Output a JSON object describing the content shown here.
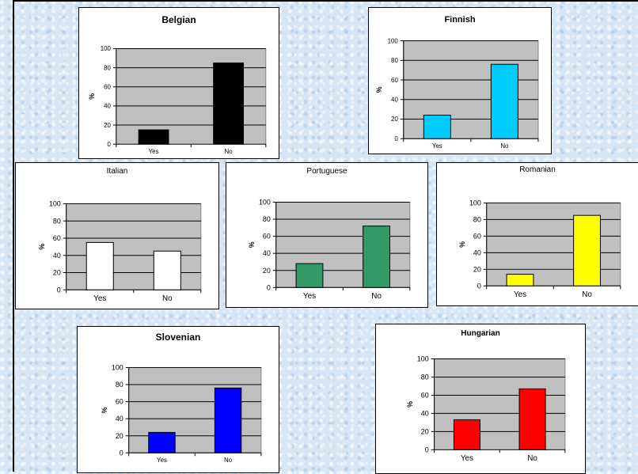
{
  "chart_data": [
    {
      "type": "bar",
      "title": "Belgian",
      "categories": [
        "Yes",
        "No"
      ],
      "values": [
        15,
        85
      ],
      "ylabel": "%",
      "ylim": [
        0,
        100
      ],
      "yticks": [
        0,
        20,
        40,
        60,
        80,
        100
      ],
      "grid": true,
      "color": "#000000"
    },
    {
      "type": "bar",
      "title": "Finnish",
      "categories": [
        "Yes",
        "No"
      ],
      "values": [
        24,
        76
      ],
      "ylabel": "%",
      "ylim": [
        0,
        100
      ],
      "yticks": [
        0,
        20,
        40,
        60,
        80,
        100
      ],
      "grid": true,
      "color": "#00ccff"
    },
    {
      "type": "bar",
      "title": "Italian",
      "categories": [
        "Yes",
        "No"
      ],
      "values": [
        55,
        45
      ],
      "ylabel": "%",
      "ylim": [
        0,
        100
      ],
      "yticks": [
        0,
        20,
        40,
        60,
        80,
        100
      ],
      "grid": true,
      "color": "#ffffff"
    },
    {
      "type": "bar",
      "title": "Portuguese",
      "categories": [
        "Yes",
        "No"
      ],
      "values": [
        28,
        72
      ],
      "ylabel": "%",
      "ylim": [
        0,
        100
      ],
      "yticks": [
        0,
        20,
        40,
        60,
        80,
        100
      ],
      "grid": true,
      "color": "#339966"
    },
    {
      "type": "bar",
      "title": "Romanian",
      "categories": [
        "Yes",
        "No"
      ],
      "values": [
        14,
        85
      ],
      "ylabel": "%",
      "ylim": [
        0,
        100
      ],
      "yticks": [
        0,
        20,
        40,
        60,
        80,
        100
      ],
      "grid": true,
      "color": "#ffff00"
    },
    {
      "type": "bar",
      "title": "Slovenian",
      "categories": [
        "Yes",
        "No"
      ],
      "values": [
        24,
        76
      ],
      "ylabel": "%",
      "ylim": [
        0,
        100
      ],
      "yticks": [
        0,
        20,
        40,
        60,
        80,
        100
      ],
      "grid": true,
      "color": "#0000ff"
    },
    {
      "type": "bar",
      "title": "Hungarian",
      "categories": [
        "Yes",
        "No"
      ],
      "values": [
        33,
        67
      ],
      "ylabel": "%",
      "ylim": [
        0,
        100
      ],
      "yticks": [
        0,
        20,
        40,
        60,
        80,
        100
      ],
      "grid": true,
      "color": "#ff0000"
    }
  ]
}
